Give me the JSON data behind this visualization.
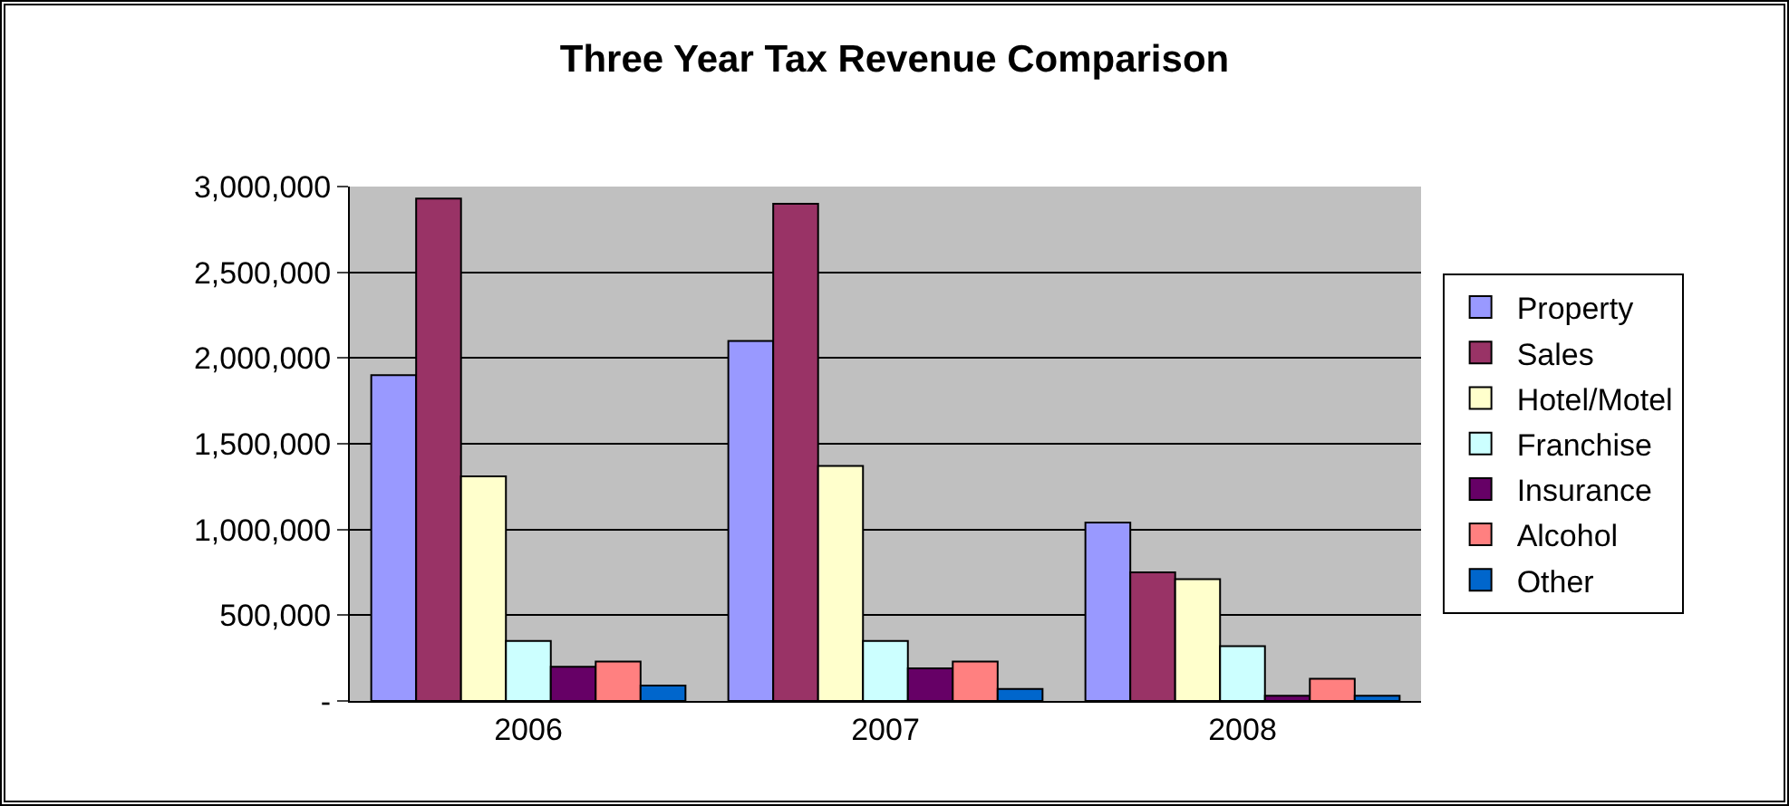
{
  "chart_data": {
    "type": "bar",
    "title": "Three Year Tax Revenue Comparison",
    "categories": [
      "2006",
      "2007",
      "2008"
    ],
    "series": [
      {
        "name": "Property",
        "color": "#9999ff",
        "values": [
          1900000,
          2100000,
          1040000
        ]
      },
      {
        "name": "Sales",
        "color": "#993366",
        "values": [
          2930000,
          2900000,
          750000
        ]
      },
      {
        "name": "Hotel/Motel",
        "color": "#ffffcc",
        "values": [
          1310000,
          1370000,
          710000
        ]
      },
      {
        "name": "Franchise",
        "color": "#ccffff",
        "values": [
          350000,
          350000,
          320000
        ]
      },
      {
        "name": "Insurance",
        "color": "#660066",
        "values": [
          200000,
          190000,
          30000
        ]
      },
      {
        "name": "Alcohol",
        "color": "#ff8080",
        "values": [
          230000,
          230000,
          130000
        ]
      },
      {
        "name": "Other",
        "color": "#0066cc",
        "values": [
          90000,
          70000,
          30000
        ]
      }
    ],
    "ylim": [
      0,
      3000000
    ],
    "yticks": [
      {
        "value": 0,
        "label": "-"
      },
      {
        "value": 500000,
        "label": "500,000"
      },
      {
        "value": 1000000,
        "label": "1,000,000"
      },
      {
        "value": 1500000,
        "label": "1,500,000"
      },
      {
        "value": 2000000,
        "label": "2,000,000"
      },
      {
        "value": 2500000,
        "label": "2,500,000"
      },
      {
        "value": 3000000,
        "label": "3,000,000"
      }
    ],
    "grid": "y",
    "legend": "right"
  }
}
